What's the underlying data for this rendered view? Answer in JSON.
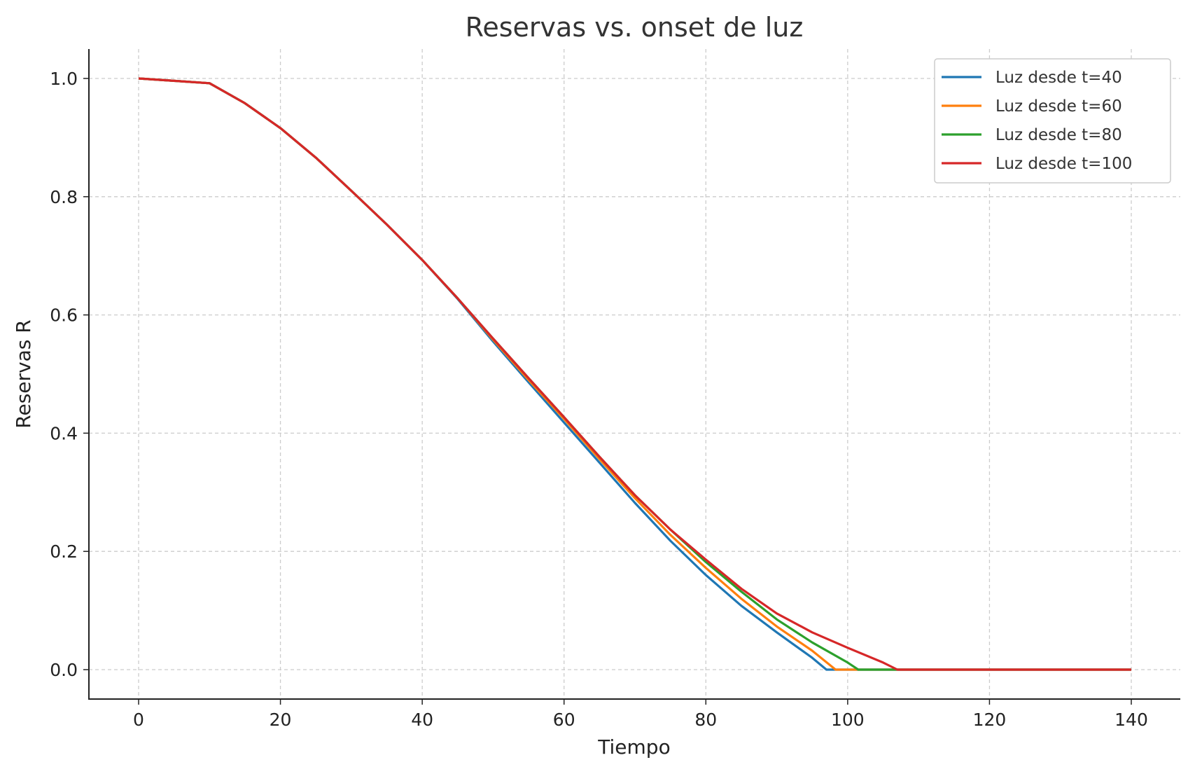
{
  "chart_data": {
    "type": "line",
    "title": "Reservas vs. onset de luz",
    "xlabel": "Tiempo",
    "ylabel": "Reservas R",
    "xlim": [
      -7,
      147
    ],
    "ylim": [
      -0.05,
      1.05
    ],
    "xticks": [
      0,
      20,
      40,
      60,
      80,
      100,
      120,
      140
    ],
    "xtick_labels": [
      "0",
      "20",
      "40",
      "60",
      "80",
      "100",
      "120",
      "140"
    ],
    "yticks": [
      0,
      0.2,
      0.4,
      0.6,
      0.8,
      1.0
    ],
    "ytick_labels": [
      "0.0",
      "0.2",
      "0.4",
      "0.6",
      "0.8",
      "1.0"
    ],
    "grid": true,
    "legend_position": "top-right",
    "series": [
      {
        "name": "Luz desde t=40",
        "color": "#1f77b4",
        "x": [
          0,
          5,
          10,
          15,
          20,
          25,
          30,
          35,
          40,
          45,
          50,
          55,
          60,
          65,
          70,
          75,
          80,
          85,
          90,
          95,
          97,
          140
        ],
        "y": [
          1.0,
          0.996,
          0.992,
          0.958,
          0.916,
          0.866,
          0.81,
          0.753,
          0.693,
          0.627,
          0.555,
          0.486,
          0.418,
          0.35,
          0.282,
          0.218,
          0.16,
          0.108,
          0.063,
          0.02,
          0,
          0
        ]
      },
      {
        "name": "Luz desde t=60",
        "color": "#ff7f0e",
        "x": [
          0,
          5,
          10,
          15,
          20,
          25,
          30,
          35,
          40,
          45,
          50,
          55,
          60,
          65,
          70,
          75,
          80,
          85,
          90,
          95,
          98.3,
          140
        ],
        "y": [
          1.0,
          0.996,
          0.992,
          0.958,
          0.916,
          0.866,
          0.81,
          0.753,
          0.693,
          0.628,
          0.558,
          0.49,
          0.424,
          0.356,
          0.29,
          0.228,
          0.172,
          0.12,
          0.073,
          0.032,
          0,
          0
        ]
      },
      {
        "name": "Luz desde t=80",
        "color": "#2ca02c",
        "x": [
          0,
          5,
          10,
          15,
          20,
          25,
          30,
          35,
          40,
          45,
          50,
          55,
          60,
          65,
          70,
          75,
          80,
          85,
          90,
          95,
          100,
          101.5,
          140
        ],
        "y": [
          1.0,
          0.996,
          0.992,
          0.958,
          0.916,
          0.866,
          0.81,
          0.753,
          0.693,
          0.628,
          0.56,
          0.493,
          0.427,
          0.36,
          0.295,
          0.237,
          0.182,
          0.132,
          0.085,
          0.046,
          0.012,
          0,
          0
        ]
      },
      {
        "name": "Luz desde t=100",
        "color": "#d62728",
        "x": [
          0,
          5,
          10,
          15,
          20,
          25,
          30,
          35,
          40,
          45,
          50,
          55,
          60,
          65,
          70,
          75,
          80,
          85,
          90,
          95,
          100,
          105,
          107,
          140
        ],
        "y": [
          1.0,
          0.996,
          0.992,
          0.958,
          0.916,
          0.866,
          0.81,
          0.753,
          0.693,
          0.628,
          0.56,
          0.493,
          0.427,
          0.36,
          0.295,
          0.237,
          0.186,
          0.137,
          0.095,
          0.063,
          0.037,
          0.012,
          0,
          0
        ]
      }
    ]
  }
}
